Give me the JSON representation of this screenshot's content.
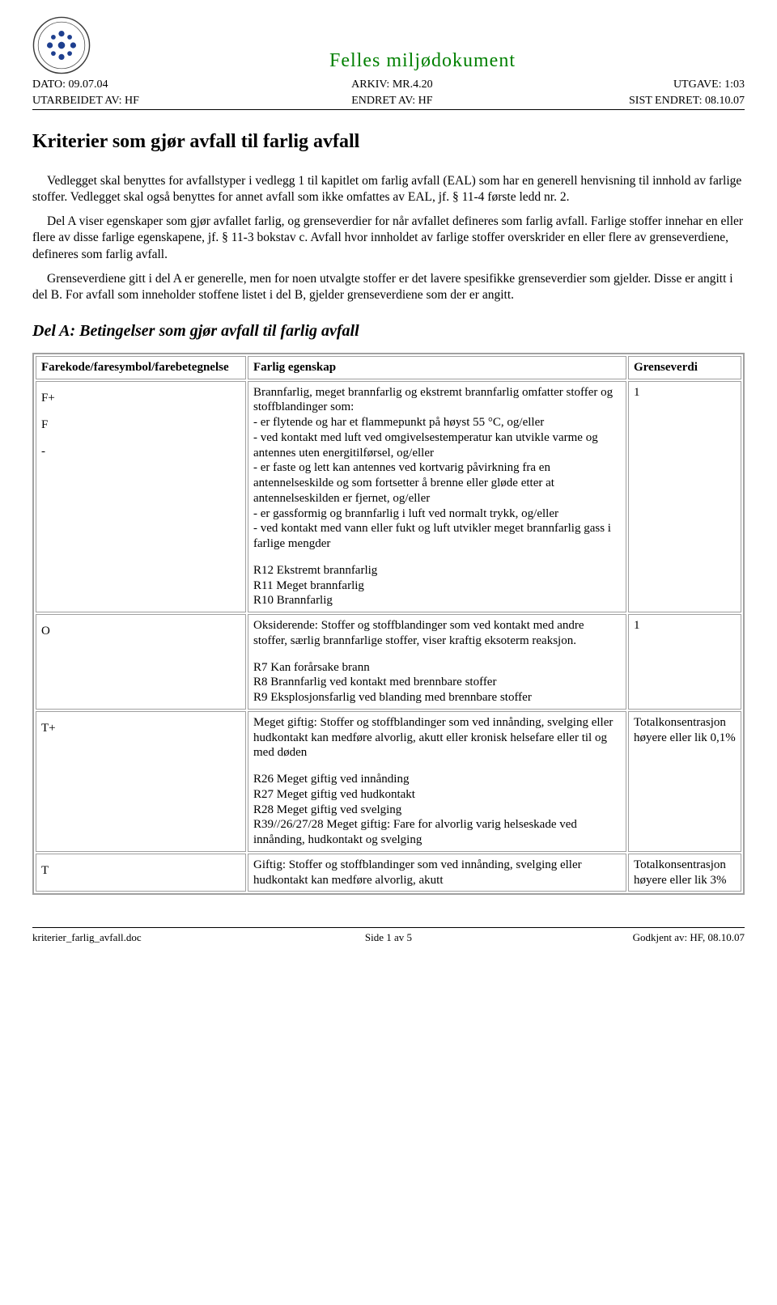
{
  "header": {
    "doc_title": "Felles miljødokument",
    "line1": {
      "left": "DATO: 09.07.04",
      "center": "ARKIV: MR.4.20",
      "right": "UTGAVE: 1:03"
    },
    "line2": {
      "left": "UTARBEIDET AV: HF",
      "center": "ENDRET AV: HF",
      "right": "SIST ENDRET: 08.10.07"
    }
  },
  "title": "Kriterier som gjør avfall til farlig avfall",
  "para1": "Vedlegget skal benyttes for avfallstyper i vedlegg 1 til kapitlet om farlig avfall (EAL) som har en generell henvisning til innhold av farlige stoffer. Vedlegget skal også benyttes for annet avfall som ikke omfattes av EAL, jf. § 11-4 første ledd nr. 2.",
  "para2": "Del A viser egenskaper som gjør avfallet farlig, og grenseverdier for når avfallet defineres som farlig avfall. Farlige stoffer innehar en eller flere av disse farlige egenskapene, jf. § 11-3 bokstav c. Avfall hvor innholdet av farlige stoffer overskrider en eller flere av grenseverdiene, defineres som farlig avfall.",
  "para3": "Grenseverdiene gitt i del A er generelle, men for noen utvalgte stoffer er det lavere spesifikke grenseverdier som gjelder. Disse er angitt i del B. For avfall som inneholder stoffene listet i del B, gjelder grenseverdiene som der er angitt.",
  "sectionA": "Del A: Betingelser som gjør avfall til farlig avfall",
  "table": {
    "headers": [
      "Farekode/faresymbol/farebetegnelse",
      "Farlig egenskap",
      "Grenseverdi"
    ],
    "rows": [
      {
        "code_lines": [
          "F+",
          "F",
          "    -"
        ],
        "desc_main": "Brannfarlig, meget brannfarlig og ekstremt brannfarlig omfatter stoffer og stoffblandinger som:\n- er flytende og har et flammepunkt på høyst 55 °C, og/eller\n- ved kontakt med luft ved omgivelsestemperatur kan utvikle varme og antennes uten energitilførsel, og/eller\n- er faste og lett kan antennes ved kortvarig påvirkning fra en antennelseskilde og som fortsetter å brenne eller gløde etter at antennelseskilden er fjernet, og/eller\n- er gassformig og brannfarlig i luft ved normalt trykk, og/eller\n- ved kontakt med vann eller fukt og luft utvikler meget brannfarlig gass i farlige mengder",
        "desc_r": "R12 Ekstremt brannfarlig\nR11 Meget brannfarlig\nR10 Brannfarlig",
        "limit": "1"
      },
      {
        "code_lines": [
          "O"
        ],
        "desc_main": "Oksiderende: Stoffer og stoffblandinger som ved kontakt med andre stoffer, særlig brannfarlige stoffer, viser kraftig eksoterm reaksjon.",
        "desc_r": "R7 Kan forårsake brann\nR8 Brannfarlig ved kontakt med brennbare stoffer\nR9 Eksplosjonsfarlig ved blanding med brennbare stoffer",
        "limit": "1"
      },
      {
        "code_lines": [
          "T+"
        ],
        "desc_main": "Meget giftig: Stoffer og stoffblandinger som ved innånding, svelging eller hudkontakt kan medføre alvorlig, akutt eller kronisk helsefare eller til og med døden",
        "desc_r": "R26 Meget giftig ved innånding\nR27 Meget giftig ved hudkontakt\nR28 Meget giftig ved svelging\nR39//26/27/28 Meget giftig: Fare for alvorlig varig helseskade ved innånding, hudkontakt og svelging",
        "limit": "Totalkonsentrasjon høyere eller lik 0,1%"
      },
      {
        "code_lines": [
          "T"
        ],
        "desc_main": "Giftig: Stoffer og stoffblandinger som ved innånding, svelging eller hudkontakt kan medføre alvorlig, akutt",
        "desc_r": "",
        "limit": "Totalkonsentrasjon høyere eller lik 3%"
      }
    ]
  },
  "footer": {
    "left": "kriterier_farlig_avfall.doc",
    "center": "Side 1 av 5",
    "right": "Godkjent av: HF, 08.10.07"
  },
  "colors": {
    "title_green": "#008000",
    "border_gray": "#a0a0a0",
    "logo_blue": "#1e3f8f",
    "logo_ring": "#3b3b3b"
  }
}
